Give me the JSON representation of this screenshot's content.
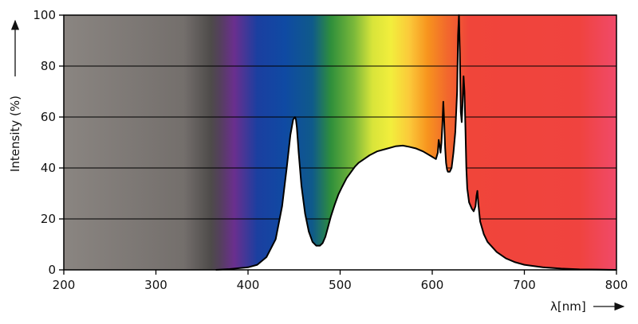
{
  "chart_data": {
    "type": "area",
    "title": "",
    "xlabel": "λ[nm]",
    "ylabel": "Intensity (%)",
    "xlim": [
      200,
      800
    ],
    "ylim": [
      0,
      100
    ],
    "x_ticks": [
      "200",
      "300",
      "400",
      "500",
      "600",
      "700",
      "800"
    ],
    "y_ticks": [
      "0",
      "20",
      "40",
      "60",
      "80",
      "100"
    ],
    "grid": "horizontal",
    "legend": "none",
    "background": "visible spectrum color gradient",
    "colors": {
      "uv": "#8a8581",
      "uv_dark": "#4e4b4a",
      "violet": "#6a2f8e",
      "blue": "#0f4aa3",
      "green": "#2f8f3b",
      "yellow": "#f2ee3c",
      "orange": "#f7941e",
      "red": "#f0453a",
      "deep_red": "#f04a6a",
      "curve_fill": "#ffffff",
      "curve_line": "#000000"
    },
    "series": [
      {
        "x": [
          365,
          380,
          400,
          410,
          420,
          430,
          437,
          442,
          446,
          449,
          451,
          452,
          453,
          455,
          458,
          462,
          466,
          470,
          474,
          478,
          481,
          484,
          487,
          490,
          494,
          498,
          502,
          507,
          511,
          516,
          520,
          526,
          532,
          540,
          550,
          560,
          568,
          575,
          582,
          590,
          598,
          604,
          606,
          607,
          608,
          609,
          610,
          611,
          612,
          613,
          614,
          615,
          616,
          617,
          619,
          621,
          623,
          625,
          627,
          628,
          629,
          630,
          631,
          632,
          633,
          634,
          635,
          636,
          637,
          638,
          640,
          643,
          645,
          647,
          648,
          649,
          650,
          652,
          656,
          660,
          670,
          680,
          690,
          700,
          720,
          740,
          760,
          780,
          800
        ],
        "y": [
          0,
          0.3,
          1,
          2,
          5,
          12,
          25,
          40,
          53,
          59,
          60,
          59,
          56,
          46,
          33,
          22,
          15,
          11,
          9.5,
          9.5,
          10.5,
          13,
          17,
          21,
          25.5,
          29.5,
          32.5,
          36,
          38,
          40.5,
          42,
          43.5,
          45,
          46.5,
          47.5,
          48.5,
          48.8,
          48.3,
          47.7,
          46.5,
          44.8,
          43.5,
          46,
          51,
          49,
          46,
          50,
          57,
          66,
          58,
          48,
          42,
          39.5,
          38.5,
          38.5,
          40,
          46,
          54,
          70,
          92,
          101,
          85,
          62,
          58,
          66,
          76,
          70,
          56,
          40,
          32,
          26.5,
          24,
          23,
          25,
          29,
          31,
          26,
          19,
          14,
          11,
          7,
          4.5,
          3,
          2,
          1,
          0.5,
          0.2,
          0.1,
          0
        ]
      }
    ]
  }
}
